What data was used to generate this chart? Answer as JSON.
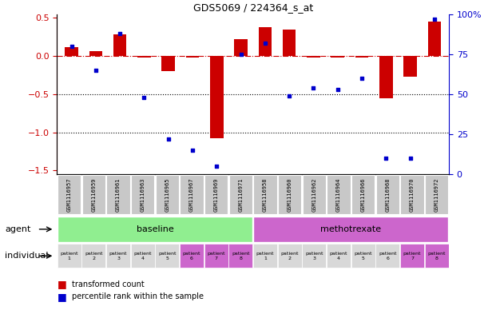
{
  "title": "GDS5069 / 224364_s_at",
  "samples": [
    "GSM1116957",
    "GSM1116959",
    "GSM1116961",
    "GSM1116963",
    "GSM1116965",
    "GSM1116967",
    "GSM1116969",
    "GSM1116971",
    "GSM1116958",
    "GSM1116960",
    "GSM1116962",
    "GSM1116964",
    "GSM1116966",
    "GSM1116968",
    "GSM1116970",
    "GSM1116972"
  ],
  "red_values": [
    0.12,
    0.06,
    0.28,
    -0.02,
    -0.2,
    -0.02,
    -1.08,
    0.22,
    0.38,
    0.35,
    -0.02,
    -0.02,
    -0.02,
    -0.55,
    -0.27,
    0.45
  ],
  "blue_values": [
    80,
    65,
    88,
    48,
    22,
    15,
    5,
    75,
    82,
    49,
    54,
    53,
    60,
    10,
    10,
    97
  ],
  "ylim_left": [
    -1.55,
    0.55
  ],
  "ylim_right": [
    0,
    100
  ],
  "yticks_left": [
    0.5,
    0.0,
    -0.5,
    -1.0,
    -1.5
  ],
  "yticks_right": [
    100,
    75,
    50,
    25,
    0
  ],
  "hlines_dotted": [
    -0.5,
    -1.0
  ],
  "hline_dashdot": 0.0,
  "groups": [
    {
      "label": "baseline",
      "color": "#90ee90",
      "start": 0,
      "end": 8
    },
    {
      "label": "methotrexate",
      "color": "#cc66cc",
      "start": 8,
      "end": 16
    }
  ],
  "patient_bg_colors": [
    "#d8d8d8",
    "#d8d8d8",
    "#d8d8d8",
    "#d8d8d8",
    "#d8d8d8",
    "#cc66cc",
    "#cc66cc",
    "#cc66cc",
    "#d8d8d8",
    "#d8d8d8",
    "#d8d8d8",
    "#d8d8d8",
    "#d8d8d8",
    "#d8d8d8",
    "#cc66cc",
    "#cc66cc"
  ],
  "bar_color": "#cc0000",
  "dot_color": "#0000cc",
  "bar_width": 0.55,
  "label_transformed": "transformed count",
  "label_percentile": "percentile rank within the sample",
  "agent_label": "agent",
  "individual_label": "individual",
  "sample_bg_color": "#c8c8c8"
}
